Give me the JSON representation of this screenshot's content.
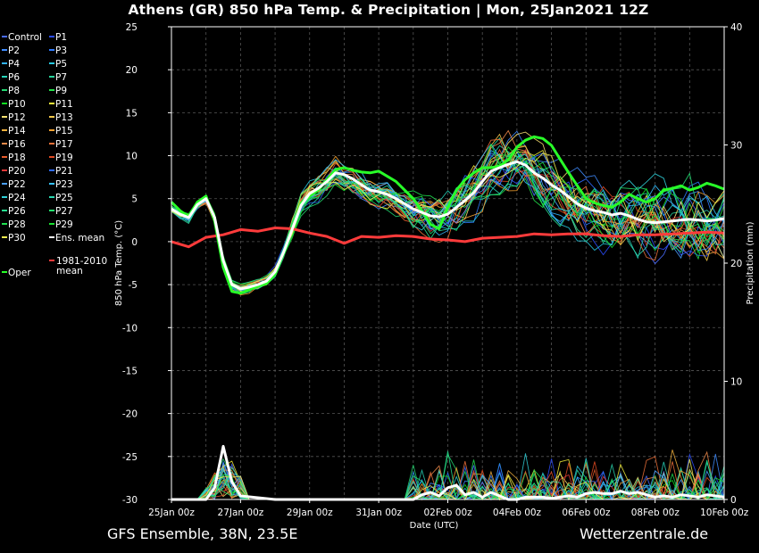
{
  "title": "Athens  (GR)  850 hPa Temp. & Precipitation | Mon, 25Jan2021 12Z",
  "footer": {
    "left": "GFS Ensemble, 38N, 23.5E",
    "right": "Wetterzentrale.de"
  },
  "chart_data": {
    "type": "line",
    "xlabel": "Date (UTC)",
    "ylabel": "850 hPa Temp. (°C)",
    "y2label": "Precipitation (mm)",
    "x_ticks": [
      "25Jan 00z",
      "27Jan 00z",
      "29Jan 00z",
      "31Jan 00z",
      "02Feb 00z",
      "04Feb 00z",
      "06Feb 00z",
      "08Feb 00z",
      "10Feb 00z"
    ],
    "x_range_days": [
      0,
      16
    ],
    "ylim": [
      -30,
      25
    ],
    "y_ticks": [
      25,
      20,
      15,
      10,
      5,
      0,
      -5,
      -10,
      -15,
      -20,
      -25,
      -30
    ],
    "y2lim": [
      0,
      40
    ],
    "y2_ticks": [
      40,
      30,
      20,
      10,
      0
    ],
    "grid": true,
    "legend_position": "left",
    "legend": [
      {
        "name": "Control",
        "color": "#4a6cff"
      },
      {
        "name": "P1",
        "color": "#2b4cff"
      },
      {
        "name": "P2",
        "color": "#3f8cff"
      },
      {
        "name": "P3",
        "color": "#2f7bff"
      },
      {
        "name": "P4",
        "color": "#33b5ff"
      },
      {
        "name": "P5",
        "color": "#27c9e0"
      },
      {
        "name": "P6",
        "color": "#27d3b8"
      },
      {
        "name": "P7",
        "color": "#27d39a"
      },
      {
        "name": "P8",
        "color": "#22d870"
      },
      {
        "name": "P9",
        "color": "#22e04a"
      },
      {
        "name": "P10",
        "color": "#11e022"
      },
      {
        "name": "P11",
        "color": "#f3f03a"
      },
      {
        "name": "P12",
        "color": "#f5e070"
      },
      {
        "name": "P13",
        "color": "#f3c84a"
      },
      {
        "name": "P14",
        "color": "#f2b03c"
      },
      {
        "name": "P15",
        "color": "#f2a030"
      },
      {
        "name": "P16",
        "color": "#f08a4a"
      },
      {
        "name": "P17",
        "color": "#ec7038"
      },
      {
        "name": "P18",
        "color": "#e85c2c"
      },
      {
        "name": "P19",
        "color": "#e04a22"
      },
      {
        "name": "P20",
        "color": "#e03838"
      },
      {
        "name": "P21",
        "color": "#2f6aff"
      },
      {
        "name": "P22",
        "color": "#4aa0ff"
      },
      {
        "name": "P23",
        "color": "#35c0ff"
      },
      {
        "name": "P24",
        "color": "#30d0d8"
      },
      {
        "name": "P25",
        "color": "#2ad8b0"
      },
      {
        "name": "P26",
        "color": "#26e090"
      },
      {
        "name": "P27",
        "color": "#22e06c"
      },
      {
        "name": "P28",
        "color": "#20e050"
      },
      {
        "name": "P29",
        "color": "#18e030"
      },
      {
        "name": "P30",
        "color": "#f5f050"
      },
      {
        "name": "Ens. mean",
        "color": "#ffffff"
      },
      {
        "name": "Oper",
        "color": "#28ff28"
      },
      {
        "name": "1981-2010\nmean",
        "color": "#ff3b3b"
      }
    ],
    "ens_mean": {
      "x": [
        0,
        0.25,
        0.5,
        0.75,
        1,
        1.25,
        1.5,
        1.75,
        2,
        2.25,
        2.5,
        2.75,
        3,
        3.25,
        3.5,
        3.75,
        4,
        4.25,
        4.5,
        4.75,
        5,
        5.25,
        5.5,
        5.75,
        6,
        6.25,
        6.5,
        6.75,
        7,
        7.25,
        7.5,
        7.75,
        8,
        8.25,
        8.5,
        8.75,
        9,
        9.25,
        9.5,
        9.75,
        10,
        10.25,
        10.5,
        10.75,
        11,
        11.25,
        11.5,
        11.75,
        12,
        12.25,
        12.5,
        12.75,
        13,
        13.25,
        13.5,
        13.75,
        14,
        14.25,
        14.5,
        14.75,
        15,
        15.25,
        15.5,
        15.75,
        16
      ],
      "y": [
        3.8,
        3.2,
        2.8,
        4.3,
        5.0,
        2.8,
        -2.2,
        -5.0,
        -5.5,
        -5.3,
        -5.0,
        -4.6,
        -3.5,
        -1.2,
        1.5,
        4.2,
        5.6,
        6.2,
        7.0,
        8.0,
        7.8,
        7.3,
        6.6,
        6.0,
        5.8,
        5.5,
        5.0,
        4.4,
        3.8,
        3.4,
        3.0,
        2.9,
        3.2,
        4.0,
        4.8,
        5.7,
        7.0,
        8.2,
        8.6,
        9.0,
        9.3,
        8.9,
        8.0,
        7.4,
        6.6,
        6.0,
        5.2,
        4.4,
        3.9,
        3.6,
        3.4,
        3.1,
        3.3,
        3.0,
        2.6,
        2.3,
        2.2,
        2.3,
        2.4,
        2.5,
        2.6,
        2.5,
        2.4,
        2.5,
        2.7
      ]
    },
    "oper": {
      "x": [
        0,
        0.25,
        0.5,
        0.75,
        1,
        1.25,
        1.5,
        1.75,
        2,
        2.25,
        2.5,
        2.75,
        3,
        3.25,
        3.5,
        3.75,
        4,
        4.25,
        4.5,
        4.75,
        5,
        5.25,
        5.5,
        5.75,
        6,
        6.25,
        6.5,
        6.75,
        7,
        7.25,
        7.5,
        7.75,
        8,
        8.25,
        8.5,
        8.75,
        9,
        9.25,
        9.5,
        9.75,
        10,
        10.25,
        10.5,
        10.75,
        11,
        11.25,
        11.5,
        11.75,
        12,
        12.25,
        12.5,
        12.75,
        13,
        13.25,
        13.5,
        13.75,
        14,
        14.25,
        14.5,
        14.75,
        15,
        15.25,
        15.5,
        15.75,
        16
      ],
      "y": [
        4.6,
        3.6,
        2.9,
        4.6,
        5.3,
        2.4,
        -3.0,
        -5.8,
        -6.0,
        -5.6,
        -5.2,
        -4.9,
        -3.8,
        -1.3,
        1.6,
        4.5,
        5.3,
        6.0,
        7.2,
        8.4,
        8.6,
        8.3,
        8.1,
        8.0,
        8.2,
        7.6,
        7.0,
        6.0,
        5.0,
        3.6,
        2.0,
        1.5,
        4.0,
        6.0,
        7.2,
        8.0,
        8.6,
        8.6,
        8.8,
        9.5,
        11.0,
        11.8,
        12.2,
        12.0,
        11.2,
        9.6,
        8.0,
        6.5,
        5.0,
        4.5,
        4.2,
        4.0,
        4.6,
        5.5,
        5.0,
        4.6,
        5.0,
        6.0,
        6.2,
        6.5,
        6.0,
        6.3,
        6.8,
        6.5,
        6.1
      ]
    },
    "climate_mean": {
      "x": [
        0,
        0.5,
        1,
        1.5,
        2,
        2.5,
        3,
        3.5,
        4,
        4.5,
        5,
        5.5,
        6,
        6.5,
        7,
        7.5,
        8,
        8.5,
        9,
        9.5,
        10,
        10.5,
        11,
        11.5,
        12,
        12.5,
        13,
        13.5,
        14,
        14.5,
        15,
        15.5,
        16
      ],
      "y": [
        0,
        -0.6,
        0.5,
        0.8,
        1.4,
        1.2,
        1.6,
        1.5,
        1.0,
        0.6,
        -0.2,
        0.6,
        0.5,
        0.7,
        0.6,
        0.3,
        0.2,
        0.0,
        0.4,
        0.5,
        0.6,
        0.9,
        0.8,
        0.9,
        0.9,
        0.7,
        0.6,
        0.8,
        0.8,
        0.9,
        1.0,
        1.1,
        1.0
      ]
    },
    "ens_mean_precip_mm": {
      "x": [
        0,
        1,
        1.25,
        1.5,
        1.75,
        2,
        3,
        4,
        7,
        7.25,
        7.5,
        7.75,
        8,
        8.25,
        8.5,
        8.75,
        9,
        9.25,
        9.5,
        9.75,
        10,
        10.25,
        10.5,
        10.75,
        11,
        11.25,
        11.5,
        11.75,
        12,
        12.25,
        12.5,
        12.75,
        13,
        13.25,
        13.5,
        13.75,
        14,
        14.25,
        14.5,
        14.75,
        15,
        15.25,
        15.5,
        15.75,
        16
      ],
      "y": [
        0,
        0,
        1.0,
        4.5,
        1.5,
        0.3,
        0,
        0,
        0,
        0.4,
        0.6,
        0.3,
        1.0,
        1.2,
        0.4,
        0.6,
        0.2,
        0.6,
        0.3,
        0,
        0,
        0.2,
        0.2,
        0.2,
        0.1,
        0.2,
        0.3,
        0.2,
        0.5,
        0.6,
        0.5,
        0.5,
        0.7,
        0.5,
        0.6,
        0.4,
        0.2,
        0.3,
        0.2,
        0.4,
        0.3,
        0.2,
        0.4,
        0.3,
        0.2
      ]
    }
  }
}
